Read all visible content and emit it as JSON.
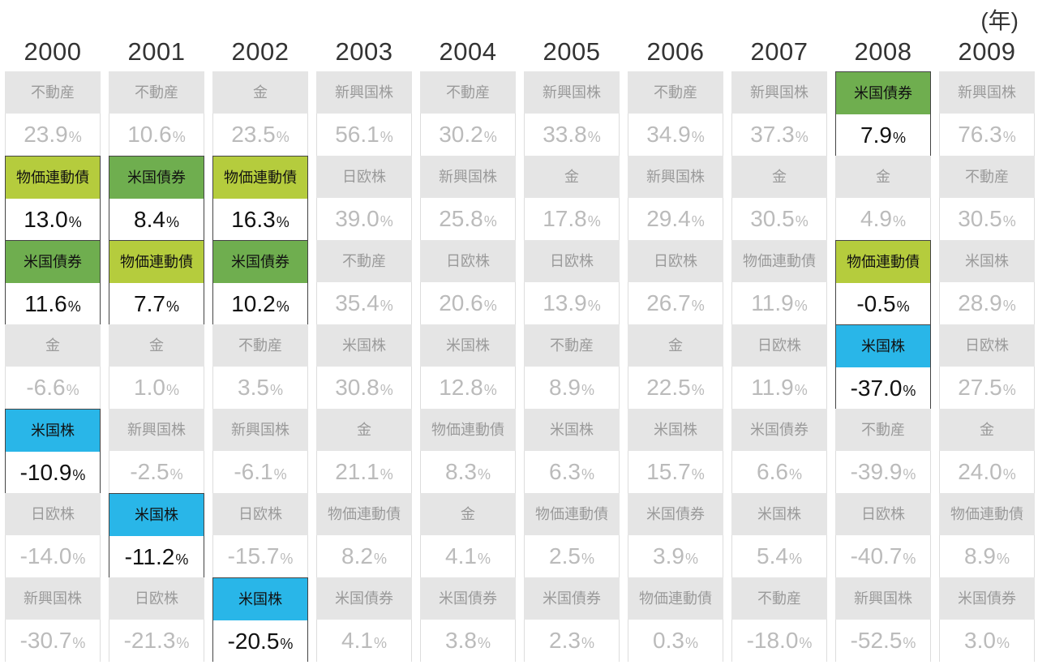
{
  "unit_label": "(年)",
  "chart_data": {
    "type": "table",
    "percent_sign": "%",
    "years": [
      "2000",
      "2001",
      "2002",
      "2003",
      "2004",
      "2005",
      "2006",
      "2007",
      "2008",
      "2009"
    ],
    "highlight_colors": {
      "米国株": "#29b6e8",
      "米国債券": "#6fae4f",
      "物価連動債": "#b5cc3d"
    },
    "columns": [
      {
        "year": "2000",
        "cells": [
          {
            "asset": "不動産",
            "value": "23.9",
            "highlight": false
          },
          {
            "asset": "物価連動債",
            "value": "13.0",
            "highlight": true
          },
          {
            "asset": "米国債券",
            "value": "11.6",
            "highlight": true
          },
          {
            "asset": "金",
            "value": "-6.6",
            "highlight": false
          },
          {
            "asset": "米国株",
            "value": "-10.9",
            "highlight": true
          },
          {
            "asset": "日欧株",
            "value": "-14.0",
            "highlight": false
          },
          {
            "asset": "新興国株",
            "value": "-30.7",
            "highlight": false
          }
        ]
      },
      {
        "year": "2001",
        "cells": [
          {
            "asset": "不動産",
            "value": "10.6",
            "highlight": false
          },
          {
            "asset": "米国債券",
            "value": "8.4",
            "highlight": true
          },
          {
            "asset": "物価連動債",
            "value": "7.7",
            "highlight": true
          },
          {
            "asset": "金",
            "value": "1.0",
            "highlight": false
          },
          {
            "asset": "新興国株",
            "value": "-2.5",
            "highlight": false
          },
          {
            "asset": "米国株",
            "value": "-11.2",
            "highlight": true
          },
          {
            "asset": "日欧株",
            "value": "-21.3",
            "highlight": false
          }
        ]
      },
      {
        "year": "2002",
        "cells": [
          {
            "asset": "金",
            "value": "23.5",
            "highlight": false
          },
          {
            "asset": "物価連動債",
            "value": "16.3",
            "highlight": true
          },
          {
            "asset": "米国債券",
            "value": "10.2",
            "highlight": true
          },
          {
            "asset": "不動産",
            "value": "3.5",
            "highlight": false
          },
          {
            "asset": "新興国株",
            "value": "-6.1",
            "highlight": false
          },
          {
            "asset": "日欧株",
            "value": "-15.7",
            "highlight": false
          },
          {
            "asset": "米国株",
            "value": "-20.5",
            "highlight": true
          }
        ]
      },
      {
        "year": "2003",
        "cells": [
          {
            "asset": "新興国株",
            "value": "56.1",
            "highlight": false
          },
          {
            "asset": "日欧株",
            "value": "39.0",
            "highlight": false
          },
          {
            "asset": "不動産",
            "value": "35.4",
            "highlight": false
          },
          {
            "asset": "米国株",
            "value": "30.8",
            "highlight": false
          },
          {
            "asset": "金",
            "value": "21.1",
            "highlight": false
          },
          {
            "asset": "物価連動債",
            "value": "8.2",
            "highlight": false
          },
          {
            "asset": "米国債券",
            "value": "4.1",
            "highlight": false
          }
        ]
      },
      {
        "year": "2004",
        "cells": [
          {
            "asset": "不動産",
            "value": "30.2",
            "highlight": false
          },
          {
            "asset": "新興国株",
            "value": "25.8",
            "highlight": false
          },
          {
            "asset": "日欧株",
            "value": "20.6",
            "highlight": false
          },
          {
            "asset": "米国株",
            "value": "12.8",
            "highlight": false
          },
          {
            "asset": "物価連動債",
            "value": "8.3",
            "highlight": false
          },
          {
            "asset": "金",
            "value": "4.1",
            "highlight": false
          },
          {
            "asset": "米国債券",
            "value": "3.8",
            "highlight": false
          }
        ]
      },
      {
        "year": "2005",
        "cells": [
          {
            "asset": "新興国株",
            "value": "33.8",
            "highlight": false
          },
          {
            "asset": "金",
            "value": "17.8",
            "highlight": false
          },
          {
            "asset": "日欧株",
            "value": "13.9",
            "highlight": false
          },
          {
            "asset": "不動産",
            "value": "8.9",
            "highlight": false
          },
          {
            "asset": "米国株",
            "value": "6.3",
            "highlight": false
          },
          {
            "asset": "物価連動債",
            "value": "2.5",
            "highlight": false
          },
          {
            "asset": "米国債券",
            "value": "2.3",
            "highlight": false
          }
        ]
      },
      {
        "year": "2006",
        "cells": [
          {
            "asset": "不動産",
            "value": "34.9",
            "highlight": false
          },
          {
            "asset": "新興国株",
            "value": "29.4",
            "highlight": false
          },
          {
            "asset": "日欧株",
            "value": "26.7",
            "highlight": false
          },
          {
            "asset": "金",
            "value": "22.5",
            "highlight": false
          },
          {
            "asset": "米国株",
            "value": "15.7",
            "highlight": false
          },
          {
            "asset": "米国債券",
            "value": "3.9",
            "highlight": false
          },
          {
            "asset": "物価連動債",
            "value": "0.3",
            "highlight": false
          }
        ]
      },
      {
        "year": "2007",
        "cells": [
          {
            "asset": "新興国株",
            "value": "37.3",
            "highlight": false
          },
          {
            "asset": "金",
            "value": "30.5",
            "highlight": false
          },
          {
            "asset": "物価連動債",
            "value": "11.9",
            "highlight": false
          },
          {
            "asset": "日欧株",
            "value": "11.9",
            "highlight": false
          },
          {
            "asset": "米国債券",
            "value": "6.6",
            "highlight": false
          },
          {
            "asset": "米国株",
            "value": "5.4",
            "highlight": false
          },
          {
            "asset": "不動産",
            "value": "-18.0",
            "highlight": false
          }
        ]
      },
      {
        "year": "2008",
        "cells": [
          {
            "asset": "米国債券",
            "value": "7.9",
            "highlight": true
          },
          {
            "asset": "金",
            "value": "4.9",
            "highlight": false
          },
          {
            "asset": "物価連動債",
            "value": "-0.5",
            "highlight": true
          },
          {
            "asset": "米国株",
            "value": "-37.0",
            "highlight": true
          },
          {
            "asset": "不動産",
            "value": "-39.9",
            "highlight": false
          },
          {
            "asset": "日欧株",
            "value": "-40.7",
            "highlight": false
          },
          {
            "asset": "新興国株",
            "value": "-52.5",
            "highlight": false
          }
        ]
      },
      {
        "year": "2009",
        "cells": [
          {
            "asset": "新興国株",
            "value": "76.3",
            "highlight": false
          },
          {
            "asset": "不動産",
            "value": "30.5",
            "highlight": false
          },
          {
            "asset": "米国株",
            "value": "28.9",
            "highlight": false
          },
          {
            "asset": "日欧株",
            "value": "27.5",
            "highlight": false
          },
          {
            "asset": "金",
            "value": "24.0",
            "highlight": false
          },
          {
            "asset": "物価連動債",
            "value": "8.9",
            "highlight": false
          },
          {
            "asset": "米国債券",
            "value": "3.0",
            "highlight": false
          }
        ]
      }
    ]
  }
}
